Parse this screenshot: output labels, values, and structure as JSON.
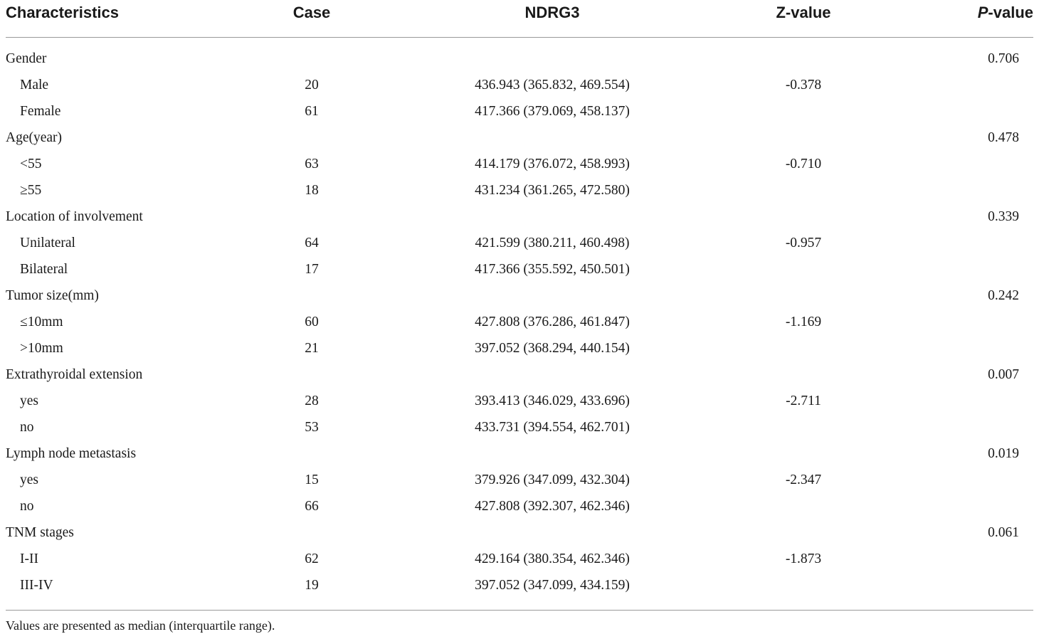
{
  "table": {
    "headers": {
      "characteristics": "Characteristics",
      "case": "Case",
      "ndrg3": "NDRG3",
      "z_value": "Z-value",
      "p_value_italic": "P",
      "p_value_rest": "-value"
    },
    "rows": [
      {
        "type": "group",
        "label": "Gender",
        "case": "",
        "ndrg3": "",
        "z": "",
        "p": "0.706"
      },
      {
        "type": "sub",
        "label": "Male",
        "case": "20",
        "ndrg3": "436.943 (365.832, 469.554)",
        "z": "-0.378",
        "p": ""
      },
      {
        "type": "sub",
        "label": "Female",
        "case": "61",
        "ndrg3": "417.366 (379.069, 458.137)",
        "z": "",
        "p": ""
      },
      {
        "type": "group",
        "label": "Age(year)",
        "case": "",
        "ndrg3": "",
        "z": "",
        "p": "0.478"
      },
      {
        "type": "sub",
        "label": "<55",
        "case": "63",
        "ndrg3": "414.179 (376.072, 458.993)",
        "z": "-0.710",
        "p": ""
      },
      {
        "type": "sub",
        "label": "≥55",
        "case": "18",
        "ndrg3": "431.234 (361.265, 472.580)",
        "z": "",
        "p": ""
      },
      {
        "type": "group",
        "label": "Location of involvement",
        "case": "",
        "ndrg3": "",
        "z": "",
        "p": "0.339"
      },
      {
        "type": "sub",
        "label": "Unilateral",
        "case": "64",
        "ndrg3": "421.599 (380.211, 460.498)",
        "z": "-0.957",
        "p": ""
      },
      {
        "type": "sub",
        "label": "Bilateral",
        "case": "17",
        "ndrg3": "417.366 (355.592, 450.501)",
        "z": "",
        "p": ""
      },
      {
        "type": "group",
        "label": "Tumor size(mm)",
        "case": "",
        "ndrg3": "",
        "z": "",
        "p": "0.242"
      },
      {
        "type": "sub",
        "label": "≤10mm",
        "case": "60",
        "ndrg3": "427.808 (376.286, 461.847)",
        "z": "-1.169",
        "p": ""
      },
      {
        "type": "sub",
        "label": ">10mm",
        "case": "21",
        "ndrg3": "397.052 (368.294, 440.154)",
        "z": "",
        "p": ""
      },
      {
        "type": "group",
        "label": "Extrathyroidal extension",
        "case": "",
        "ndrg3": "",
        "z": "",
        "p": "0.007"
      },
      {
        "type": "sub",
        "label": "yes",
        "case": "28",
        "ndrg3": "393.413 (346.029, 433.696)",
        "z": "-2.711",
        "p": ""
      },
      {
        "type": "sub",
        "label": "no",
        "case": "53",
        "ndrg3": "433.731 (394.554, 462.701)",
        "z": "",
        "p": ""
      },
      {
        "type": "group",
        "label": "Lymph node metastasis",
        "case": "",
        "ndrg3": "",
        "z": "",
        "p": "0.019"
      },
      {
        "type": "sub",
        "label": "yes",
        "case": "15",
        "ndrg3": "379.926 (347.099, 432.304)",
        "z": "-2.347",
        "p": ""
      },
      {
        "type": "sub",
        "label": "no",
        "case": "66",
        "ndrg3": "427.808 (392.307, 462.346)",
        "z": "",
        "p": ""
      },
      {
        "type": "group",
        "label": "TNM stages",
        "case": "",
        "ndrg3": "",
        "z": "",
        "p": "0.061"
      },
      {
        "type": "sub",
        "label": "I-II",
        "case": "62",
        "ndrg3": "429.164 (380.354, 462.346)",
        "z": "-1.873",
        "p": ""
      },
      {
        "type": "sub",
        "label": "III-IV",
        "case": "19",
        "ndrg3": "397.052 (347.099, 434.159)",
        "z": "",
        "p": ""
      }
    ],
    "footnote": "Values are presented as median (interquartile range)."
  }
}
